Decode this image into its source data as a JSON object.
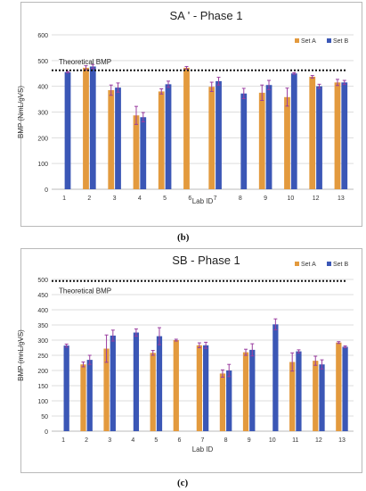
{
  "colors": {
    "set_a": "#e39a3e",
    "set_b": "#3b57b6",
    "error_bar": "#9a3ea0",
    "reference_line": "#111111",
    "grid": "#dddddd",
    "text": "#333333"
  },
  "chart_data": [
    {
      "type": "bar",
      "title": "SA ' - Phase 1",
      "xlabel": "Lab ID",
      "ylabel": "BMP (NmL/gVS)",
      "ylim": [
        0,
        600
      ],
      "yticks": [
        0,
        100,
        200,
        300,
        400,
        500,
        600
      ],
      "grid": true,
      "legend": "top-right",
      "categories": [
        "1",
        "2",
        "3",
        "4",
        "5",
        "6",
        "7",
        "8",
        "9",
        "10",
        "12",
        "13"
      ],
      "series": [
        {
          "name": "Set A",
          "values": [
            null,
            472,
            385,
            287,
            380,
            472,
            398,
            null,
            375,
            358,
            437,
            415
          ],
          "errors": [
            null,
            8,
            20,
            35,
            10,
            5,
            18,
            null,
            30,
            35,
            5,
            12
          ]
        },
        {
          "name": "Set B",
          "values": [
            455,
            477,
            395,
            280,
            408,
            null,
            420,
            372,
            405,
            450,
            400,
            415
          ],
          "errors": [
            3,
            8,
            18,
            18,
            12,
            null,
            15,
            20,
            18,
            3,
            8,
            8
          ]
        }
      ],
      "reference_line": {
        "label": "Theoretical BMP",
        "value": 462
      },
      "caption": "(b)"
    },
    {
      "type": "bar",
      "title": "SB - Phase 1",
      "xlabel": "Lab ID",
      "ylabel": "BMP (mnL/gVS)",
      "ylim": [
        0,
        500
      ],
      "yticks": [
        0,
        50,
        100,
        150,
        200,
        250,
        300,
        350,
        400,
        450,
        500
      ],
      "grid": true,
      "legend": "top-right",
      "categories": [
        "1",
        "2",
        "3",
        "4",
        "5",
        "6",
        "7",
        "8",
        "9",
        "10",
        "11",
        "12",
        "13"
      ],
      "series": [
        {
          "name": "Set A",
          "values": [
            null,
            220,
            272,
            null,
            258,
            300,
            283,
            190,
            260,
            null,
            228,
            232,
            292
          ],
          "errors": [
            null,
            8,
            45,
            null,
            8,
            3,
            8,
            12,
            10,
            null,
            30,
            15,
            3
          ]
        },
        {
          "name": "Set B",
          "values": [
            282,
            235,
            315,
            325,
            313,
            null,
            283,
            200,
            268,
            352,
            263,
            220,
            278
          ],
          "errors": [
            5,
            15,
            18,
            12,
            28,
            null,
            10,
            20,
            20,
            18,
            5,
            15,
            3
          ]
        }
      ],
      "reference_line": {
        "label": "Theoretical BMP",
        "value": 495
      },
      "caption": "(c)"
    }
  ]
}
